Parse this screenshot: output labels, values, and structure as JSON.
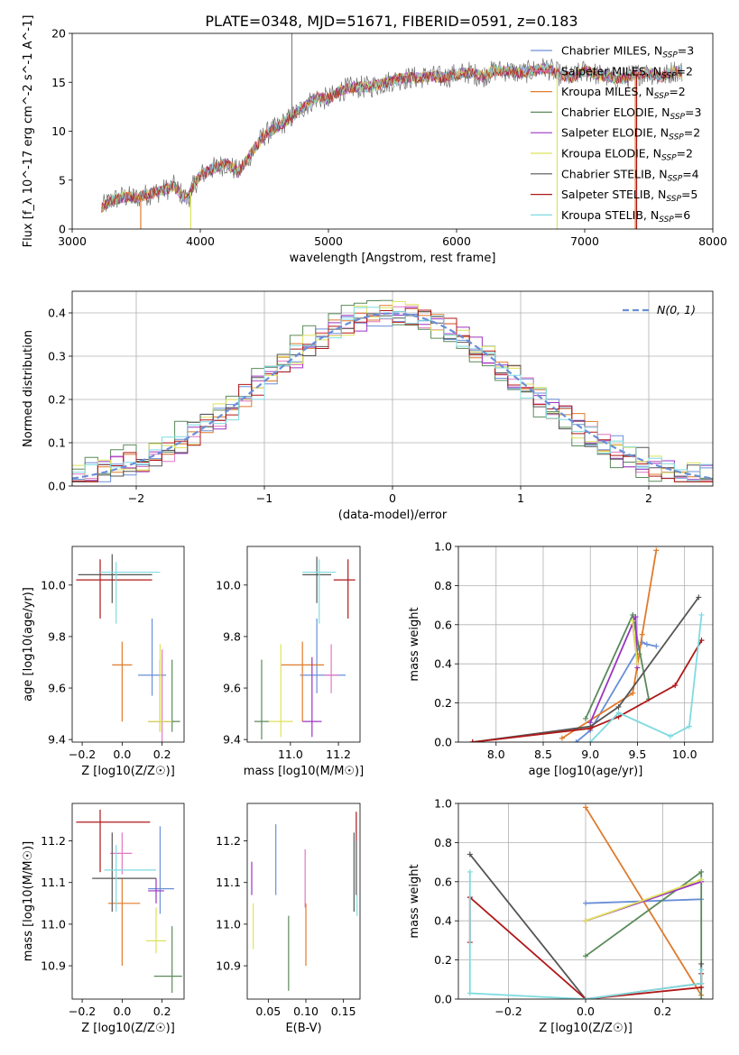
{
  "title": "PLATE=0348, MJD=51671, FIBERID=0591, z=0.183",
  "models": [
    {
      "name": "Chabrier MILES",
      "nssp": "3",
      "color": "#6a8fd8"
    },
    {
      "name": "Salpeter MILES",
      "nssp": "2",
      "color": "#e377c2"
    },
    {
      "name": "Kroupa MILES",
      "nssp": "2",
      "color": "#e07b2c"
    },
    {
      "name": "Chabrier ELODIE",
      "nssp": "3",
      "color": "#5a8a5a"
    },
    {
      "name": "Salpeter ELODIE",
      "nssp": "2",
      "color": "#9b35c2"
    },
    {
      "name": "Kroupa ELODIE",
      "nssp": "2",
      "color": "#dde25a"
    },
    {
      "name": "Chabrier STELIB",
      "nssp": "4",
      "color": "#555555"
    },
    {
      "name": "Salpeter STELIB",
      "nssp": "5",
      "color": "#b01818"
    },
    {
      "name": "Kroupa STELIB",
      "nssp": "6",
      "color": "#7fdbe0"
    }
  ],
  "chart_data": [
    {
      "type": "line",
      "id": "spectrum",
      "xlabel": "wavelength [Angstrom, rest frame]",
      "ylabel": "Flux [f_λ 10^-17 erg cm^-2 s^-1 A^-1]",
      "xlim": [
        3000,
        8000
      ],
      "ylim": [
        0,
        20
      ],
      "xticks": [
        3000,
        4000,
        5000,
        6000,
        7000,
        8000
      ],
      "yticks": [
        0,
        5,
        10,
        15,
        20
      ],
      "spectrum_points": [
        [
          3230,
          2.2
        ],
        [
          3300,
          2.9
        ],
        [
          3400,
          3.3
        ],
        [
          3500,
          3.2
        ],
        [
          3600,
          3.6
        ],
        [
          3700,
          3.9
        ],
        [
          3800,
          4.4
        ],
        [
          3850,
          3.6
        ],
        [
          3900,
          3.0
        ],
        [
          3950,
          4.5
        ],
        [
          4000,
          5.5
        ],
        [
          4100,
          6.2
        ],
        [
          4200,
          6.7
        ],
        [
          4300,
          5.8
        ],
        [
          4400,
          7.8
        ],
        [
          4500,
          9.6
        ],
        [
          4600,
          10.4
        ],
        [
          4700,
          11.3
        ],
        [
          4800,
          12.4
        ],
        [
          4900,
          13.4
        ],
        [
          5000,
          13.3
        ],
        [
          5100,
          14.2
        ],
        [
          5200,
          14.5
        ],
        [
          5300,
          14.5
        ],
        [
          5400,
          14.8
        ],
        [
          5500,
          15.2
        ],
        [
          5600,
          15.4
        ],
        [
          5700,
          15.5
        ],
        [
          5800,
          15.6
        ],
        [
          5900,
          15.5
        ],
        [
          6000,
          15.8
        ],
        [
          6100,
          16.0
        ],
        [
          6200,
          15.6
        ],
        [
          6300,
          16.2
        ],
        [
          6400,
          16.2
        ],
        [
          6500,
          15.9
        ],
        [
          6600,
          16.2
        ],
        [
          6700,
          16.5
        ],
        [
          6800,
          15.8
        ],
        [
          6900,
          15.5
        ],
        [
          7000,
          16.2
        ],
        [
          7100,
          15.8
        ],
        [
          7200,
          15.5
        ],
        [
          7300,
          15.4
        ],
        [
          7400,
          15.8
        ],
        [
          7500,
          16.0
        ],
        [
          7600,
          15.5
        ],
        [
          7700,
          16.2
        ],
        [
          7760,
          16.0
        ]
      ],
      "drop_edges": [
        [
          3535,
          "#e07b2c"
        ],
        [
          3925,
          "#dde25a"
        ],
        [
          6785,
          "#dde25a"
        ],
        [
          7395,
          "#e07b2c"
        ],
        [
          7405,
          "#b01818"
        ]
      ]
    },
    {
      "type": "bar",
      "id": "residual-histogram",
      "xlabel": "(data-model)/error",
      "ylabel": "Normed distribution",
      "xlim": [
        -2.5,
        2.5
      ],
      "ylim": [
        0,
        0.45
      ],
      "xticks": [
        -2,
        -1,
        0,
        1,
        2
      ],
      "yticks": [
        0.0,
        0.1,
        0.2,
        0.3,
        0.4
      ],
      "legend": "N(0, 1)",
      "bin_width": 0.1,
      "normal_color": "#6a8fd8"
    },
    {
      "type": "scatter",
      "id": "age-vs-Z",
      "xlabel": "Z [log10(Z/Z☉)]",
      "ylabel": "age [log10(age/yr)]",
      "xlim": [
        -0.25,
        0.31
      ],
      "ylim": [
        9.39,
        10.15
      ],
      "xticks": [
        -0.2,
        0.0,
        0.2
      ],
      "yticks": [
        9.4,
        9.6,
        9.8,
        10.0
      ],
      "points": [
        {
          "x": 0.15,
          "y": 9.65,
          "xerr": [
            0.07,
            0.07
          ],
          "yerr": [
            0.08,
            0.22
          ]
        },
        {
          "x": 0.2,
          "y": 9.47,
          "xerr": [
            0.06,
            0.06
          ],
          "yerr": [
            0.08,
            0.28
          ]
        },
        {
          "x": 0.0,
          "y": 9.69,
          "xerr": [
            0.05,
            0.05
          ],
          "yerr": [
            0.22,
            0.09
          ]
        },
        {
          "x": 0.25,
          "y": 9.47,
          "xerr": [
            0.04,
            0.04
          ],
          "yerr": [
            0.04,
            0.24
          ]
        },
        {
          "x": 0.19,
          "y": 9.47,
          "xerr": [
            0.06,
            0.06
          ],
          "yerr": [
            0.04,
            0.24
          ]
        },
        {
          "x": 0.19,
          "y": 9.47,
          "xerr": [
            0.06,
            0.06
          ],
          "yerr": [
            0.04,
            0.3
          ]
        },
        {
          "x": -0.05,
          "y": 10.04,
          "xerr": [
            0.17,
            0.2
          ],
          "yerr": [
            0.11,
            0.08
          ]
        },
        {
          "x": -0.11,
          "y": 10.02,
          "xerr": [
            0.12,
            0.26
          ],
          "yerr": [
            0.15,
            0.08
          ]
        },
        {
          "x": -0.03,
          "y": 10.05,
          "xerr": [
            0.08,
            0.22
          ],
          "yerr": [
            0.2,
            0.04
          ]
        }
      ]
    },
    {
      "type": "scatter",
      "id": "age-vs-mass",
      "xlabel": "mass [log10(M/M☉)]",
      "ylabel": "",
      "xlim": [
        10.82,
        11.29
      ],
      "ylim": [
        9.39,
        10.15
      ],
      "xticks": [
        11.0,
        11.2
      ],
      "yticks": [
        9.4,
        9.6,
        9.8,
        10.0
      ],
      "points": [
        {
          "x": 11.11,
          "y": 9.65,
          "xerr": [
            0.07,
            0.12
          ],
          "yerr": [
            0.07,
            0.22
          ]
        },
        {
          "x": 11.17,
          "y": 9.65,
          "xerr": [
            0.03,
            0.03
          ],
          "yerr": [
            0.07,
            0.12
          ]
        },
        {
          "x": 11.05,
          "y": 9.69,
          "xerr": [
            0.09,
            0.09
          ],
          "yerr": [
            0.22,
            0.09
          ]
        },
        {
          "x": 10.88,
          "y": 9.47,
          "xerr": [
            0.03,
            0.03
          ],
          "yerr": [
            0.07,
            0.24
          ]
        },
        {
          "x": 11.09,
          "y": 9.47,
          "xerr": [
            0.04,
            0.04
          ],
          "yerr": [
            0.06,
            0.25
          ]
        },
        {
          "x": 10.96,
          "y": 9.47,
          "xerr": [
            0.05,
            0.05
          ],
          "yerr": [
            0.06,
            0.3
          ]
        },
        {
          "x": 11.11,
          "y": 10.04,
          "xerr": [
            0.06,
            0.06
          ],
          "yerr": [
            0.11,
            0.07
          ]
        },
        {
          "x": 11.24,
          "y": 10.02,
          "xerr": [
            0.06,
            0.03
          ],
          "yerr": [
            0.15,
            0.08
          ]
        },
        {
          "x": 11.12,
          "y": 10.05,
          "xerr": [
            0.07,
            0.07
          ],
          "yerr": [
            0.2,
            0.05
          ]
        }
      ]
    },
    {
      "type": "line",
      "id": "mass-weight-vs-age",
      "xlabel": "age [log10(age/yr)]",
      "ylabel": "mass weight",
      "xlim": [
        7.6,
        10.3
      ],
      "ylim": [
        0,
        1.0
      ],
      "xticks": [
        8.0,
        8.5,
        9.0,
        9.5,
        10.0
      ],
      "yticks": [
        0.0,
        0.2,
        0.4,
        0.6,
        0.8,
        1.0
      ],
      "series": [
        {
          "x": [
            8.85,
            9.0,
            9.55,
            9.6,
            9.7
          ],
          "y": [
            0.0,
            0.06,
            0.51,
            0.5,
            0.49
          ]
        },
        {
          "x": [
            9.45,
            9.5
          ],
          "y": [
            0.6,
            0.4
          ]
        },
        {
          "x": [
            8.7,
            9.45,
            9.52,
            9.55,
            9.7
          ],
          "y": [
            0.02,
            0.25,
            0.45,
            0.55,
            0.98
          ]
        },
        {
          "x": [
            8.95,
            9.45,
            9.62
          ],
          "y": [
            0.12,
            0.65,
            0.22
          ]
        },
        {
          "x": [
            9.0,
            9.48,
            9.5
          ],
          "y": [
            0.1,
            0.64,
            0.38
          ]
        },
        {
          "x": [
            9.45,
            9.5
          ],
          "y": [
            0.62,
            0.4
          ]
        },
        {
          "x": [
            7.75,
            9.0,
            9.3,
            10.15
          ],
          "y": [
            0.0,
            0.08,
            0.18,
            0.74
          ]
        },
        {
          "x": [
            7.75,
            9.0,
            9.3,
            9.9,
            10.18
          ],
          "y": [
            0.0,
            0.07,
            0.13,
            0.29,
            0.52
          ]
        },
        {
          "x": [
            9.0,
            9.3,
            9.85,
            10.05,
            10.18
          ],
          "y": [
            0.0,
            0.15,
            0.03,
            0.08,
            0.65
          ]
        }
      ]
    },
    {
      "type": "scatter",
      "id": "mass-vs-Z",
      "xlabel": "Z [log10(Z/Z☉)]",
      "ylabel": "mass [log10(M/M☉)]",
      "xlim": [
        -0.25,
        0.31
      ],
      "ylim": [
        10.82,
        11.29
      ],
      "xticks": [
        -0.2,
        0.0,
        0.2
      ],
      "yticks": [
        10.9,
        11.0,
        11.1,
        11.2
      ],
      "points": [
        {
          "x": 0.19,
          "y": 11.085,
          "xerr": [
            0.06,
            0.07
          ],
          "yerr": [
            0.06,
            0.15
          ]
        },
        {
          "x": 0.0,
          "y": 11.17,
          "xerr": [
            0.06,
            0.05
          ],
          "yerr": [
            0.05,
            0.05
          ]
        },
        {
          "x": 0.0,
          "y": 11.05,
          "xerr": [
            0.07,
            0.09
          ],
          "yerr": [
            0.15,
            0.06
          ]
        },
        {
          "x": 0.25,
          "y": 10.875,
          "xerr": [
            0.09,
            0.05
          ],
          "yerr": [
            0.04,
            0.12
          ]
        },
        {
          "x": 0.17,
          "y": 11.08,
          "xerr": [
            0.04,
            0.04
          ],
          "yerr": [
            0.03,
            0.03
          ]
        },
        {
          "x": 0.17,
          "y": 10.96,
          "xerr": [
            0.05,
            0.05
          ],
          "yerr": [
            0.03,
            0.08
          ]
        },
        {
          "x": -0.05,
          "y": 11.11,
          "xerr": [
            0.1,
            0.22
          ],
          "yerr": [
            0.08,
            0.11
          ]
        },
        {
          "x": -0.11,
          "y": 11.245,
          "xerr": [
            0.12,
            0.25
          ],
          "yerr": [
            0.12,
            0.03
          ]
        },
        {
          "x": -0.03,
          "y": 11.13,
          "xerr": [
            0.06,
            0.2
          ],
          "yerr": [
            0.1,
            0.06
          ]
        }
      ]
    },
    {
      "type": "scatter",
      "id": "mass-vs-ebv",
      "xlabel": "E(B-V)",
      "ylabel": "",
      "xlim": [
        0.022,
        0.172
      ],
      "ylim": [
        10.82,
        11.29
      ],
      "xticks": [
        0.05,
        0.1,
        0.15
      ],
      "yticks": [
        10.9,
        11.0,
        11.1,
        11.2
      ],
      "points": [
        {
          "x": 0.06,
          "y": 11.14,
          "yerr": [
            0.07,
            0.1
          ]
        },
        {
          "x": 0.099,
          "y": 11.11,
          "yerr": [
            0.07,
            0.07
          ]
        },
        {
          "x": 0.1,
          "y": 10.97,
          "yerr": [
            0.07,
            0.08
          ]
        },
        {
          "x": 0.077,
          "y": 10.92,
          "yerr": [
            0.08,
            0.1
          ]
        },
        {
          "x": 0.028,
          "y": 11.11,
          "yerr": [
            0.04,
            0.04
          ]
        },
        {
          "x": 0.03,
          "y": 10.99,
          "yerr": [
            0.05,
            0.06
          ]
        },
        {
          "x": 0.164,
          "y": 11.12,
          "yerr": [
            0.09,
            0.1
          ]
        },
        {
          "x": 0.167,
          "y": 11.17,
          "yerr": [
            0.1,
            0.1
          ]
        },
        {
          "x": 0.168,
          "y": 11.12,
          "yerr": [
            0.1,
            0.08
          ]
        }
      ]
    },
    {
      "type": "line",
      "id": "mass-weight-vs-Z",
      "xlabel": "Z [log10(Z/Z☉)]",
      "ylabel": "mass weight",
      "xlim": [
        -0.33,
        0.33
      ],
      "ylim": [
        0,
        1.0
      ],
      "xticks": [
        -0.2,
        0.0,
        0.2
      ],
      "yticks": [
        0.0,
        0.2,
        0.4,
        0.6,
        0.8,
        1.0
      ],
      "series": [
        {
          "x": [
            0.0,
            0.3
          ],
          "y": [
            0.49,
            0.51
          ]
        },
        {
          "x": [
            0.0,
            0.3
          ],
          "y": [
            0.4,
            0.6
          ]
        },
        {
          "x": [
            0.0,
            0.3
          ],
          "y": [
            0.98,
            0.02
          ]
        },
        {
          "x": [
            0.0,
            0.3,
            0.3
          ],
          "y": [
            0.22,
            0.65,
            0.0
          ]
        },
        {
          "x": [
            0.0,
            0.3
          ],
          "y": [
            0.4,
            0.6
          ]
        },
        {
          "x": [
            0.0,
            0.3
          ],
          "y": [
            0.4,
            0.61
          ]
        },
        {
          "x": [
            -0.3,
            0.0,
            0.3,
            0.3
          ],
          "y": [
            0.74,
            0.0,
            0.08,
            0.18
          ]
        },
        {
          "x": [
            -0.3,
            -0.3,
            0.0,
            0.3,
            0.3
          ],
          "y": [
            0.29,
            0.52,
            0.0,
            0.06,
            0.13
          ]
        },
        {
          "x": [
            -0.3,
            -0.3,
            0.0,
            0.3,
            0.3
          ],
          "y": [
            0.65,
            0.03,
            0.0,
            0.08,
            0.15
          ]
        }
      ]
    }
  ]
}
